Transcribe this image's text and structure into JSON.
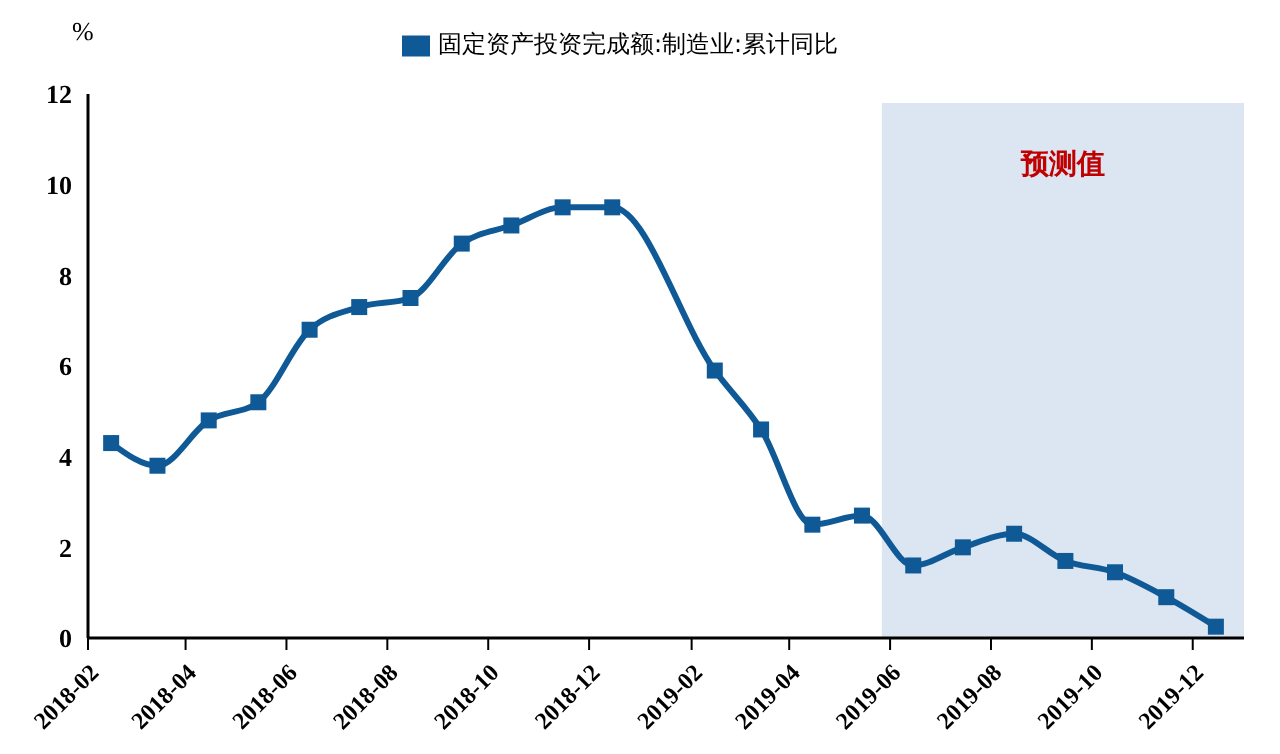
{
  "chart_data": {
    "type": "line",
    "ylabel": "%",
    "x": [
      "2018-02-15",
      "2018-03-15",
      "2018-04-15",
      "2018-05-15",
      "2018-06-15",
      "2018-07-15",
      "2018-08-15",
      "2018-09-15",
      "2018-10-15",
      "2018-11-15",
      "2018-12-15",
      "2019-02-15",
      "2019-03-15",
      "2019-04-15",
      "2019-05-15",
      "2019-06-15",
      "2019-07-15",
      "2019-08-15",
      "2019-09-15",
      "2019-10-15",
      "2019-11-15",
      "2019-12-15"
    ],
    "series": [
      {
        "name": "固定资产投资完成额:制造业:累计同比",
        "color": "#0f5a96",
        "values": [
          4.3,
          3.8,
          4.8,
          5.2,
          6.8,
          7.3,
          7.5,
          8.7,
          9.1,
          9.5,
          9.5,
          5.9,
          4.6,
          2.5,
          2.7,
          1.6,
          2.0,
          2.3,
          1.7,
          1.45,
          0.9,
          0.25
        ]
      }
    ],
    "xlim": [
      "2018-02",
      "2020-01"
    ],
    "xticks": [
      "2018-02",
      "2018-04",
      "2018-06",
      "2018-08",
      "2018-10",
      "2018-12",
      "2019-02",
      "2019-04",
      "2019-06",
      "2019-08",
      "2019-10",
      "2019-12"
    ],
    "ylim": [
      0,
      12
    ],
    "yticks": [
      0,
      2,
      4,
      6,
      8,
      10,
      12
    ],
    "bands": [
      {
        "axis": "x",
        "from": "2019-05-27",
        "to": "2020-01",
        "label": "预测值",
        "color": "#dce6f2"
      }
    ],
    "grid": false,
    "legend": "top",
    "marker": "square",
    "line_style": "solid"
  }
}
